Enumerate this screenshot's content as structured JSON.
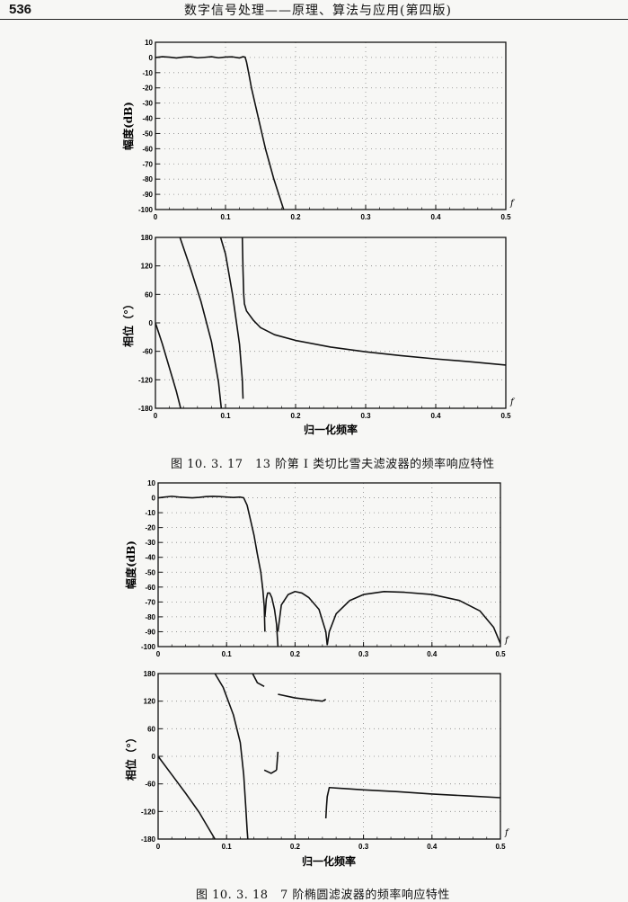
{
  "header": {
    "page_number": "536",
    "running_title": "数字信号处理——原理、算法与应用(第四版)"
  },
  "figures": [
    {
      "caption": "图 10. 3. 17　13 阶第 I 类切比雪夫滤波器的频率响应特性",
      "xlabel": "归一化频率"
    },
    {
      "caption": "图 10. 3. 18　7 阶椭圆滤波器的频率响应特性",
      "xlabel": "归一化频率"
    }
  ],
  "chart_data": [
    {
      "type": "line",
      "figure": "图 10.3.17",
      "panel": "magnitude",
      "ylabel": "幅度(dB)",
      "x_axis_label": "f",
      "xlim": [
        0,
        0.5
      ],
      "ylim": [
        -100,
        10
      ],
      "xticks": [
        "0",
        "0.1",
        "0.2",
        "0.3",
        "0.4",
        "0.5"
      ],
      "yticks": [
        "10",
        "0",
        "-10",
        "-20",
        "-30",
        "-40",
        "-50",
        "-60",
        "-70",
        "-80",
        "-90",
        "-100"
      ],
      "grid": true,
      "segments": [
        [
          [
            0,
            0
          ],
          [
            0.01,
            0.5
          ],
          [
            0.02,
            0.2
          ],
          [
            0.03,
            -0.3
          ],
          [
            0.04,
            0.3
          ],
          [
            0.05,
            0.5
          ],
          [
            0.06,
            -0.2
          ],
          [
            0.07,
            0.1
          ],
          [
            0.08,
            0.5
          ],
          [
            0.09,
            -0.2
          ],
          [
            0.1,
            0.3
          ],
          [
            0.11,
            0.4
          ],
          [
            0.12,
            -0.3
          ],
          [
            0.125,
            0.5
          ],
          [
            0.128,
            0.2
          ],
          [
            0.13,
            -3
          ],
          [
            0.133,
            -10
          ],
          [
            0.137,
            -20
          ],
          [
            0.142,
            -30
          ],
          [
            0.147,
            -40
          ],
          [
            0.152,
            -50
          ],
          [
            0.157,
            -60
          ],
          [
            0.163,
            -70
          ],
          [
            0.169,
            -80
          ],
          [
            0.176,
            -90
          ],
          [
            0.183,
            -100
          ]
        ]
      ]
    },
    {
      "type": "line",
      "figure": "图 10.3.17",
      "panel": "phase",
      "ylabel": "相位（°）",
      "xlabel": "归一化频率",
      "x_axis_label": "f",
      "xlim": [
        0,
        0.5
      ],
      "ylim": [
        -180,
        180
      ],
      "xticks": [
        "0",
        "0.1",
        "0.2",
        "0.3",
        "0.4",
        "0.5"
      ],
      "yticks": [
        "180",
        "120",
        "60",
        "0",
        "-60",
        "-120",
        "-180"
      ],
      "grid": true,
      "segments": [
        [
          [
            0,
            0
          ],
          [
            0.01,
            -45
          ],
          [
            0.02,
            -95
          ],
          [
            0.03,
            -145
          ],
          [
            0.036,
            -180
          ]
        ],
        [
          [
            0.035,
            180
          ],
          [
            0.05,
            115
          ],
          [
            0.065,
            45
          ],
          [
            0.08,
            -40
          ],
          [
            0.09,
            -125
          ],
          [
            0.094,
            -180
          ]
        ],
        [
          [
            0.093,
            180
          ],
          [
            0.1,
            145
          ],
          [
            0.11,
            60
          ],
          [
            0.12,
            -45
          ],
          [
            0.124,
            -120
          ],
          [
            0.125,
            -160
          ]
        ],
        [
          [
            0.124,
            180
          ],
          [
            0.125,
            110
          ],
          [
            0.126,
            60
          ],
          [
            0.127,
            40
          ],
          [
            0.13,
            25
          ],
          [
            0.14,
            5
          ],
          [
            0.15,
            -10
          ],
          [
            0.17,
            -25
          ],
          [
            0.2,
            -37
          ],
          [
            0.25,
            -51
          ],
          [
            0.3,
            -61
          ],
          [
            0.35,
            -69
          ],
          [
            0.4,
            -76
          ],
          [
            0.45,
            -82
          ],
          [
            0.5,
            -89
          ]
        ]
      ]
    },
    {
      "type": "line",
      "figure": "图 10.3.18",
      "panel": "magnitude",
      "ylabel": "幅度(dB)",
      "x_axis_label": "f",
      "xlim": [
        0,
        0.5
      ],
      "ylim": [
        -100,
        10
      ],
      "xticks": [
        "0",
        "0.1",
        "0.2",
        "0.3",
        "0.4",
        "0.5"
      ],
      "yticks": [
        "10",
        "0",
        "-10",
        "-20",
        "-30",
        "-40",
        "-50",
        "-60",
        "-70",
        "-80",
        "-90",
        "-100"
      ],
      "grid": true,
      "segments": [
        [
          [
            0,
            0
          ],
          [
            0.01,
            0.5
          ],
          [
            0.02,
            1
          ],
          [
            0.03,
            0.5
          ],
          [
            0.04,
            0.2
          ],
          [
            0.05,
            0
          ],
          [
            0.06,
            0.3
          ],
          [
            0.07,
            0.8
          ],
          [
            0.08,
            1
          ],
          [
            0.09,
            0.8
          ],
          [
            0.1,
            0.5
          ],
          [
            0.11,
            0.2
          ],
          [
            0.12,
            0.5
          ],
          [
            0.125,
            0
          ],
          [
            0.13,
            -5
          ],
          [
            0.135,
            -15
          ],
          [
            0.14,
            -25
          ],
          [
            0.145,
            -38
          ],
          [
            0.15,
            -50
          ],
          [
            0.153,
            -62
          ],
          [
            0.155,
            -73
          ],
          [
            0.156,
            -90
          ]
        ],
        [
          [
            0.156,
            -80
          ],
          [
            0.158,
            -68
          ],
          [
            0.16,
            -64
          ],
          [
            0.163,
            -64
          ],
          [
            0.166,
            -67
          ],
          [
            0.17,
            -75
          ],
          [
            0.173,
            -85
          ],
          [
            0.175,
            -100
          ]
        ],
        [
          [
            0.175,
            -90
          ],
          [
            0.18,
            -72
          ],
          [
            0.19,
            -65
          ],
          [
            0.2,
            -63
          ],
          [
            0.21,
            -64
          ],
          [
            0.22,
            -67
          ],
          [
            0.235,
            -75
          ],
          [
            0.245,
            -90
          ],
          [
            0.247,
            -99
          ]
        ],
        [
          [
            0.247,
            -99
          ],
          [
            0.25,
            -90
          ],
          [
            0.26,
            -78
          ],
          [
            0.28,
            -69
          ],
          [
            0.3,
            -65
          ],
          [
            0.33,
            -63
          ],
          [
            0.36,
            -63.5
          ],
          [
            0.4,
            -65
          ],
          [
            0.44,
            -69
          ],
          [
            0.47,
            -76
          ],
          [
            0.49,
            -87
          ],
          [
            0.5,
            -98
          ]
        ]
      ]
    },
    {
      "type": "line",
      "figure": "图 10.3.18",
      "panel": "phase",
      "ylabel": "相位（°）",
      "xlabel": "归一化频率",
      "x_axis_label": "f",
      "xlim": [
        0,
        0.5
      ],
      "ylim": [
        -180,
        180
      ],
      "xticks": [
        "0",
        "0.1",
        "0.2",
        "0.3",
        "0.4",
        "0.5"
      ],
      "yticks": [
        "180",
        "120",
        "60",
        "0",
        "-60",
        "-120",
        "-180"
      ],
      "grid": true,
      "segments": [
        [
          [
            0,
            0
          ],
          [
            0.02,
            -40
          ],
          [
            0.04,
            -80
          ],
          [
            0.06,
            -122
          ],
          [
            0.075,
            -160
          ],
          [
            0.083,
            -180
          ]
        ],
        [
          [
            0.083,
            180
          ],
          [
            0.095,
            150
          ],
          [
            0.11,
            90
          ],
          [
            0.12,
            30
          ],
          [
            0.125,
            -40
          ],
          [
            0.128,
            -110
          ],
          [
            0.13,
            -160
          ],
          [
            0.131,
            -180
          ]
        ],
        [
          [
            0.138,
            180
          ],
          [
            0.145,
            160
          ],
          [
            0.155,
            152
          ]
        ],
        [
          [
            0.155,
            -30
          ],
          [
            0.165,
            -37
          ],
          [
            0.173,
            -30
          ]
        ],
        [
          [
            0.173,
            -30
          ],
          [
            0.175,
            10
          ]
        ],
        [
          [
            0.175,
            135
          ],
          [
            0.2,
            127
          ],
          [
            0.24,
            120
          ],
          [
            0.245,
            124
          ]
        ],
        [
          [
            0.245,
            -135
          ],
          [
            0.246,
            -108
          ],
          [
            0.247,
            -88
          ],
          [
            0.25,
            -68
          ],
          [
            0.3,
            -73
          ],
          [
            0.35,
            -77
          ],
          [
            0.4,
            -82
          ],
          [
            0.45,
            -86
          ],
          [
            0.5,
            -90
          ]
        ]
      ]
    }
  ]
}
